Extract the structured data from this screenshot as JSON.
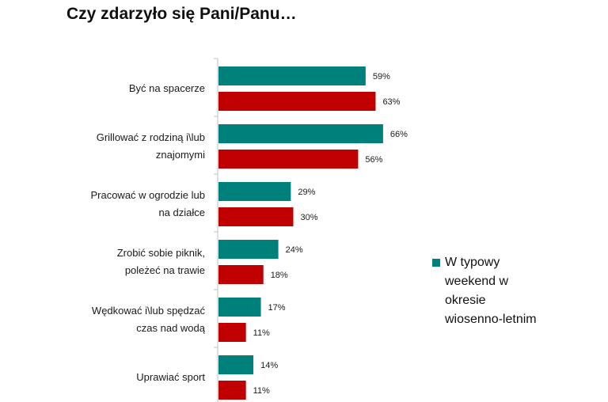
{
  "title": "Czy zdarzyło się Pani/Panu…",
  "legend": {
    "visible_entries": [
      {
        "series_index": 0,
        "lines": [
          "W typowy",
          "weekend w",
          "okresie",
          "wiosenno-letnim"
        ]
      }
    ]
  },
  "colors": {
    "teal": "#00807a",
    "red": "#c00000",
    "axis": "#bfbfbf"
  },
  "chart_data": {
    "type": "bar",
    "orientation": "horizontal",
    "categories": [
      [
        "Być na spacerze"
      ],
      [
        "Grillować z rodziną i\\lub",
        "znajomymi"
      ],
      [
        "Pracować w ogrodzie lub",
        "na działce"
      ],
      [
        "Zrobić sobie piknik,",
        "poleżeć na trawie"
      ],
      [
        "Wędkować i\\lub spędzać",
        "czas nad wodą"
      ],
      [
        "Uprawiać sport"
      ]
    ],
    "series": [
      {
        "name": "W typowy weekend w okresie wiosenno-letnim",
        "color": "#00807a",
        "values": [
          59,
          66,
          29,
          24,
          17,
          14
        ],
        "labels": [
          "59%",
          "66%",
          "29%",
          "24%",
          "17%",
          "14%"
        ]
      },
      {
        "color": "#c00000",
        "values": [
          63,
          56,
          30,
          18,
          11,
          11
        ],
        "labels": [
          "63%",
          "56%",
          "30%",
          "18%",
          "11%",
          "11%"
        ]
      }
    ],
    "xlim": [
      0,
      100
    ],
    "grid": false
  }
}
